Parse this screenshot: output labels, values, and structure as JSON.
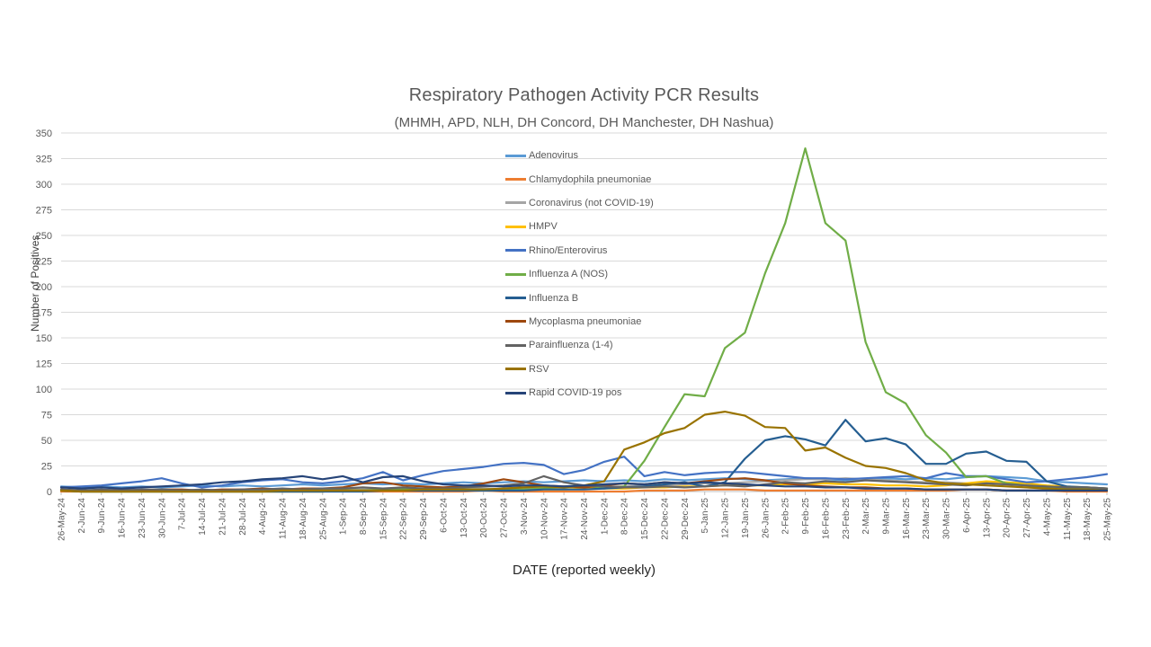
{
  "header": {
    "title": "Respiratory Pathogen Activity PCR Results",
    "subtitle": "(MHMH, APD, NLH, DH Concord, DH Manchester, DH Nashua)"
  },
  "chart_data": {
    "type": "line",
    "title": "Respiratory Pathogen Activity PCR Results",
    "subtitle": "(MHMH, APD, NLH, DH Concord, DH Manchester, DH Nashua)",
    "xlabel": "DATE (reported weekly)",
    "ylabel": "Number of Positives",
    "ylim": [
      0,
      350
    ],
    "ytick_step": 25,
    "grid": true,
    "legend_position": "vertical list overlapping upper-middle of plot",
    "categories": [
      "26-May-24",
      "2-Jun-24",
      "9-Jun-24",
      "16-Jun-24",
      "23-Jun-24",
      "30-Jun-24",
      "7-Jul-24",
      "14-Jul-24",
      "21-Jul-24",
      "28-Jul-24",
      "4-Aug-24",
      "11-Aug-24",
      "18-Aug-24",
      "25-Aug-24",
      "1-Sep-24",
      "8-Sep-24",
      "15-Sep-24",
      "22-Sep-24",
      "29-Sep-24",
      "6-Oct-24",
      "13-Oct-24",
      "20-Oct-24",
      "27-Oct-24",
      "3-Nov-24",
      "10-Nov-24",
      "17-Nov-24",
      "24-Nov-24",
      "1-Dec-24",
      "8-Dec-24",
      "15-Dec-24",
      "22-Dec-24",
      "29-Dec-24",
      "5-Jan-25",
      "12-Jan-25",
      "19-Jan-25",
      "26-Jan-25",
      "2-Feb-25",
      "9-Feb-25",
      "16-Feb-25",
      "23-Feb-25",
      "2-Mar-25",
      "9-Mar-25",
      "16-Mar-25",
      "23-Mar-25",
      "30-Mar-25",
      "6-Apr-25",
      "13-Apr-25",
      "20-Apr-25",
      "27-Apr-25",
      "4-May-25",
      "11-May-25",
      "18-May-25",
      "25-May-25"
    ],
    "series": [
      {
        "name": "Adenovirus",
        "color": "#5B9BD5",
        "values": [
          5,
          4,
          5,
          4,
          5,
          4,
          5,
          6,
          5,
          6,
          5,
          6,
          7,
          6,
          7,
          8,
          7,
          8,
          7,
          8,
          9,
          8,
          9,
          10,
          9,
          10,
          11,
          10,
          11,
          10,
          12,
          11,
          12,
          13,
          12,
          11,
          12,
          13,
          12,
          11,
          12,
          13,
          12,
          13,
          12,
          14,
          15,
          14,
          13,
          10,
          9,
          8,
          7
        ]
      },
      {
        "name": "Chlamydophila pneumoniae",
        "color": "#ED7D31",
        "values": [
          0,
          0,
          0,
          0,
          0,
          0,
          0,
          0,
          0,
          0,
          0,
          0,
          0,
          0,
          1,
          0,
          0,
          0,
          0,
          0,
          0,
          1,
          0,
          0,
          0,
          0,
          0,
          0,
          0,
          1,
          1,
          1,
          2,
          2,
          2,
          1,
          1,
          1,
          1,
          1,
          1,
          1,
          1,
          1,
          1,
          2,
          2,
          1,
          1,
          1,
          0,
          0,
          0
        ]
      },
      {
        "name": "Coronavirus (not COVID-19)",
        "color": "#A5A5A5",
        "values": [
          1,
          1,
          0,
          1,
          1,
          1,
          1,
          1,
          1,
          1,
          1,
          1,
          2,
          1,
          2,
          2,
          2,
          2,
          2,
          3,
          3,
          3,
          3,
          4,
          4,
          4,
          5,
          5,
          5,
          6,
          6,
          7,
          8,
          8,
          9,
          10,
          11,
          12,
          12,
          13,
          12,
          11,
          10,
          9,
          9,
          8,
          8,
          7,
          6,
          5,
          4,
          4,
          3
        ]
      },
      {
        "name": "HMPV",
        "color": "#FFC000",
        "values": [
          1,
          0,
          0,
          0,
          0,
          0,
          0,
          0,
          0,
          0,
          0,
          0,
          0,
          0,
          1,
          1,
          1,
          1,
          1,
          1,
          1,
          1,
          2,
          2,
          2,
          2,
          3,
          3,
          3,
          4,
          4,
          5,
          5,
          6,
          6,
          6,
          7,
          7,
          8,
          7,
          7,
          6,
          6,
          5,
          6,
          8,
          10,
          9,
          8,
          6,
          5,
          4,
          3
        ]
      },
      {
        "name": "Rhino/Enterovirus",
        "color": "#4472C4",
        "values": [
          4,
          5,
          6,
          8,
          10,
          13,
          8,
          4,
          6,
          9,
          11,
          12,
          9,
          8,
          10,
          13,
          19,
          11,
          16,
          20,
          22,
          24,
          27,
          28,
          26,
          17,
          21,
          29,
          34,
          15,
          19,
          16,
          18,
          19,
          19,
          17,
          15,
          13,
          13,
          12,
          13,
          14,
          15,
          13,
          18,
          15,
          15,
          12,
          9,
          10,
          12,
          14,
          17
        ]
      },
      {
        "name": "Influenza A (NOS)",
        "color": "#70AD47",
        "values": [
          1,
          0,
          0,
          0,
          0,
          0,
          0,
          0,
          0,
          0,
          0,
          0,
          0,
          0,
          1,
          1,
          2,
          3,
          2,
          2,
          2,
          2,
          2,
          2,
          3,
          5,
          6,
          3,
          5,
          30,
          63,
          95,
          93,
          140,
          155,
          213,
          262,
          335,
          262,
          245,
          146,
          97,
          86,
          55,
          38,
          14,
          15,
          8,
          6,
          4,
          3,
          3,
          2
        ]
      },
      {
        "name": "Influenza B",
        "color": "#255E91",
        "values": [
          1,
          0,
          0,
          0,
          0,
          0,
          0,
          0,
          0,
          0,
          0,
          0,
          0,
          0,
          0,
          0,
          1,
          1,
          1,
          1,
          1,
          1,
          1,
          1,
          2,
          2,
          2,
          3,
          4,
          5,
          7,
          9,
          5,
          9,
          32,
          50,
          54,
          51,
          45,
          70,
          49,
          52,
          46,
          27,
          27,
          37,
          39,
          30,
          29,
          10,
          5,
          4,
          3
        ]
      },
      {
        "name": "Mycoplasma pneumoniae",
        "color": "#9E480E",
        "values": [
          2,
          1,
          1,
          2,
          1,
          2,
          2,
          1,
          2,
          2,
          3,
          2,
          3,
          3,
          4,
          8,
          9,
          6,
          5,
          4,
          5,
          8,
          12,
          9,
          6,
          5,
          4,
          6,
          8,
          7,
          9,
          8,
          10,
          12,
          13,
          11,
          8,
          6,
          5,
          4,
          4,
          3,
          3,
          2,
          2,
          2,
          2,
          1,
          1,
          1,
          1,
          1,
          1
        ]
      },
      {
        "name": "Parainfluenza (1-4)",
        "color": "#636363",
        "values": [
          2,
          1,
          2,
          1,
          2,
          2,
          1,
          2,
          1,
          2,
          2,
          3,
          2,
          3,
          3,
          4,
          3,
          4,
          3,
          3,
          4,
          5,
          6,
          8,
          15,
          9,
          6,
          5,
          4,
          4,
          5,
          4,
          5,
          6,
          5,
          7,
          9,
          8,
          10,
          9,
          11,
          10,
          9,
          8,
          7,
          6,
          8,
          7,
          6,
          5,
          4,
          4,
          3
        ]
      },
      {
        "name": "RSV",
        "color": "#997300",
        "values": [
          1,
          0,
          0,
          0,
          0,
          0,
          0,
          0,
          0,
          0,
          0,
          1,
          1,
          1,
          1,
          1,
          1,
          1,
          2,
          2,
          2,
          2,
          3,
          4,
          5,
          4,
          6,
          10,
          41,
          48,
          57,
          62,
          75,
          78,
          74,
          63,
          62,
          40,
          43,
          33,
          25,
          23,
          18,
          11,
          8,
          7,
          6,
          5,
          4,
          3,
          2,
          2,
          1
        ]
      },
      {
        "name": "Rapid COVID-19 pos",
        "color": "#264478",
        "values": [
          4,
          3,
          4,
          3,
          4,
          5,
          6,
          7,
          9,
          10,
          12,
          13,
          15,
          12,
          15,
          9,
          14,
          15,
          10,
          7,
          6,
          6,
          5,
          6,
          6,
          5,
          6,
          7,
          8,
          7,
          9,
          8,
          9,
          8,
          7,
          6,
          5,
          5,
          4,
          4,
          3,
          3,
          3,
          2,
          2,
          2,
          2,
          1,
          1,
          1,
          1,
          1,
          1
        ]
      }
    ]
  },
  "colors": {
    "grid": "#D9D9D9",
    "axis_line": "#BFBFBF",
    "tick_text": "#595959",
    "title_text": "#595959",
    "x_axis_title_text": "#262626",
    "y_axis_title_text": "#404040",
    "background": "#FFFFFF"
  }
}
